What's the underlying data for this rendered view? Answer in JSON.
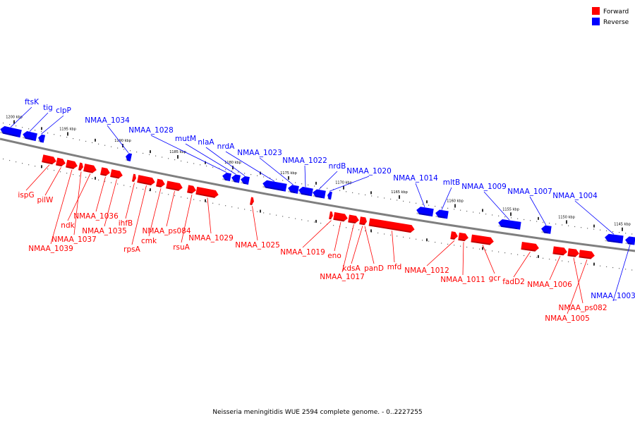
{
  "legend": {
    "forward_label": "Forward",
    "reverse_label": "Reverse",
    "forward_color": "#ff0000",
    "reverse_color": "#0000ff"
  },
  "footer": {
    "title": "Neisseria meningitidis WUE 2594 complete genome. - 0..2227255"
  },
  "colors": {
    "backbone": "#7f7f7f",
    "tick": "#000000",
    "dot": "#666666"
  },
  "ticks": [
    {
      "label": "1200 kbp"
    },
    {
      "label": "1195 kbp"
    },
    {
      "label": "1190 kbp"
    },
    {
      "label": "1185 kbp"
    },
    {
      "label": "1180 kbp"
    },
    {
      "label": "1175 kbp"
    },
    {
      "label": "1170 kbp"
    },
    {
      "label": "1165 kbp"
    },
    {
      "label": "1160 kbp"
    },
    {
      "label": "1155 kbp"
    },
    {
      "label": "1150 kbp"
    },
    {
      "label": "1145 kbp"
    }
  ],
  "reverse_genes": [
    {
      "label": "ftsK"
    },
    {
      "label": "tig"
    },
    {
      "label": "clpP"
    },
    {
      "label": "NMAA_1034"
    },
    {
      "label": "NMAA_1028"
    },
    {
      "label": "mutM"
    },
    {
      "label": "nlaA"
    },
    {
      "label": "nrdA"
    },
    {
      "label": "NMAA_1023"
    },
    {
      "label": "NMAA_1022"
    },
    {
      "label": "nrdB"
    },
    {
      "label": "NMAA_1020"
    },
    {
      "label": "NMAA_1014"
    },
    {
      "label": "mltB"
    },
    {
      "label": "NMAA_1009"
    },
    {
      "label": "NMAA_1007"
    },
    {
      "label": "NMAA_1004"
    },
    {
      "label": "NMAA_1003"
    }
  ],
  "forward_genes": [
    {
      "label": "ispG"
    },
    {
      "label": "pilW"
    },
    {
      "label": "NMAA_1039"
    },
    {
      "label": "NMAA_1037"
    },
    {
      "label": "ndk"
    },
    {
      "label": "NMAA_1036"
    },
    {
      "label": "NMAA_1035"
    },
    {
      "label": "ihfB"
    },
    {
      "label": "rpsA"
    },
    {
      "label": "cmk"
    },
    {
      "label": "NMAA_ps084"
    },
    {
      "label": "rsuA"
    },
    {
      "label": "NMAA_1029"
    },
    {
      "label": "NMAA_1025"
    },
    {
      "label": "NMAA_1019"
    },
    {
      "label": "eno"
    },
    {
      "label": "NMAA_1017"
    },
    {
      "label": "kdsA"
    },
    {
      "label": "panD"
    },
    {
      "label": "mfd"
    },
    {
      "label": "NMAA_1012"
    },
    {
      "label": "NMAA_1011"
    },
    {
      "label": "gcr"
    },
    {
      "label": "fadD2"
    },
    {
      "label": "NMAA_1006"
    },
    {
      "label": "NMAA_ps082"
    },
    {
      "label": "NMAA_1005"
    }
  ]
}
